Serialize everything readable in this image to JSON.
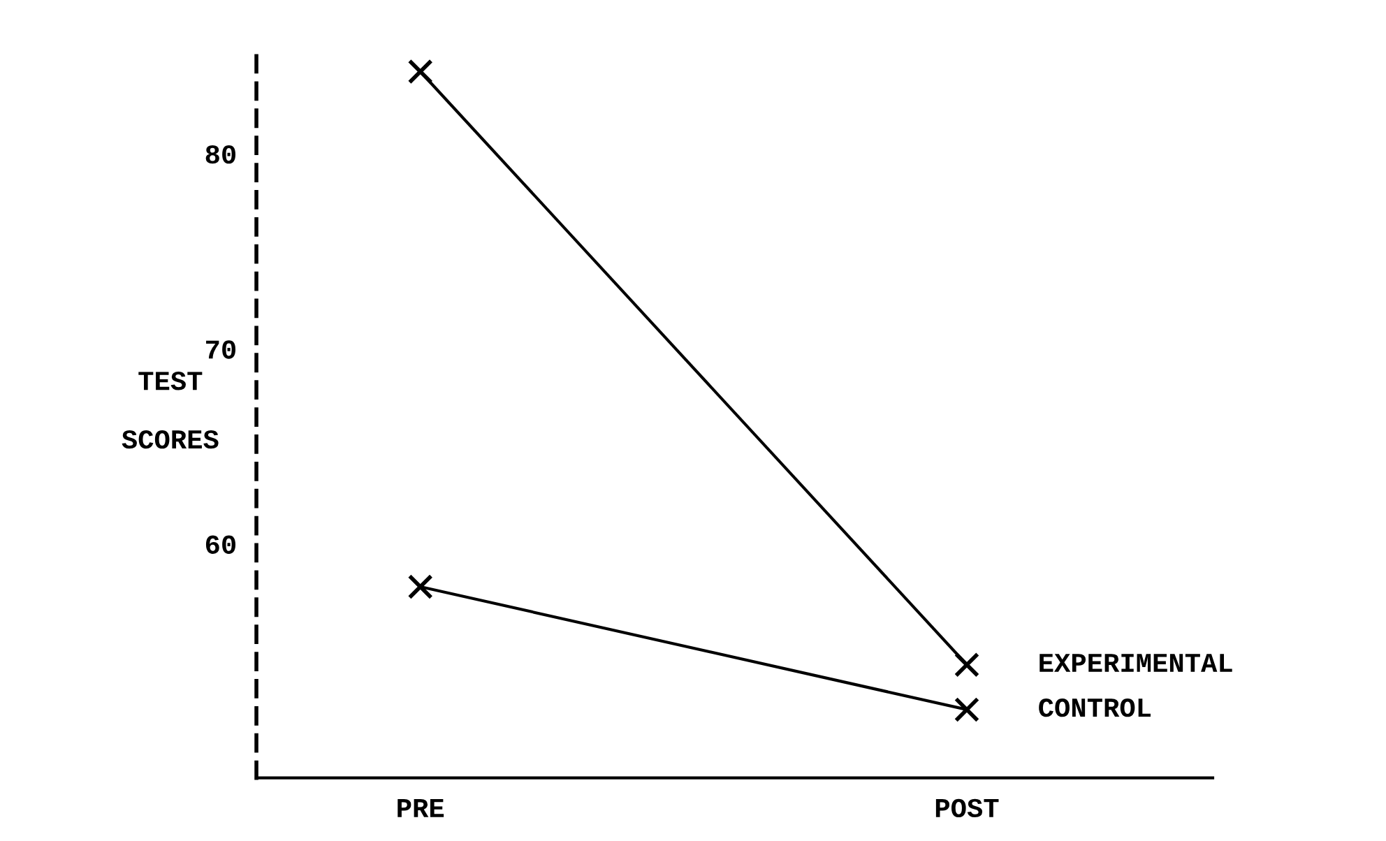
{
  "chart_data": {
    "type": "line",
    "ylabel": "TEST SCORES",
    "categories": [
      "PRE",
      "POST"
    ],
    "series": [
      {
        "name": "EXPERIMENTAL",
        "color": "#000000",
        "values": [
          84.2,
          53.8
        ]
      },
      {
        "name": "CONTROL",
        "color": "#000000",
        "values": [
          57.8,
          51.5
        ]
      }
    ],
    "ylim": [
      48,
      85.5
    ],
    "yticks": [
      60,
      70,
      80
    ],
    "marker": "cross",
    "line_style": "solid",
    "grid": false,
    "legend": false
  }
}
